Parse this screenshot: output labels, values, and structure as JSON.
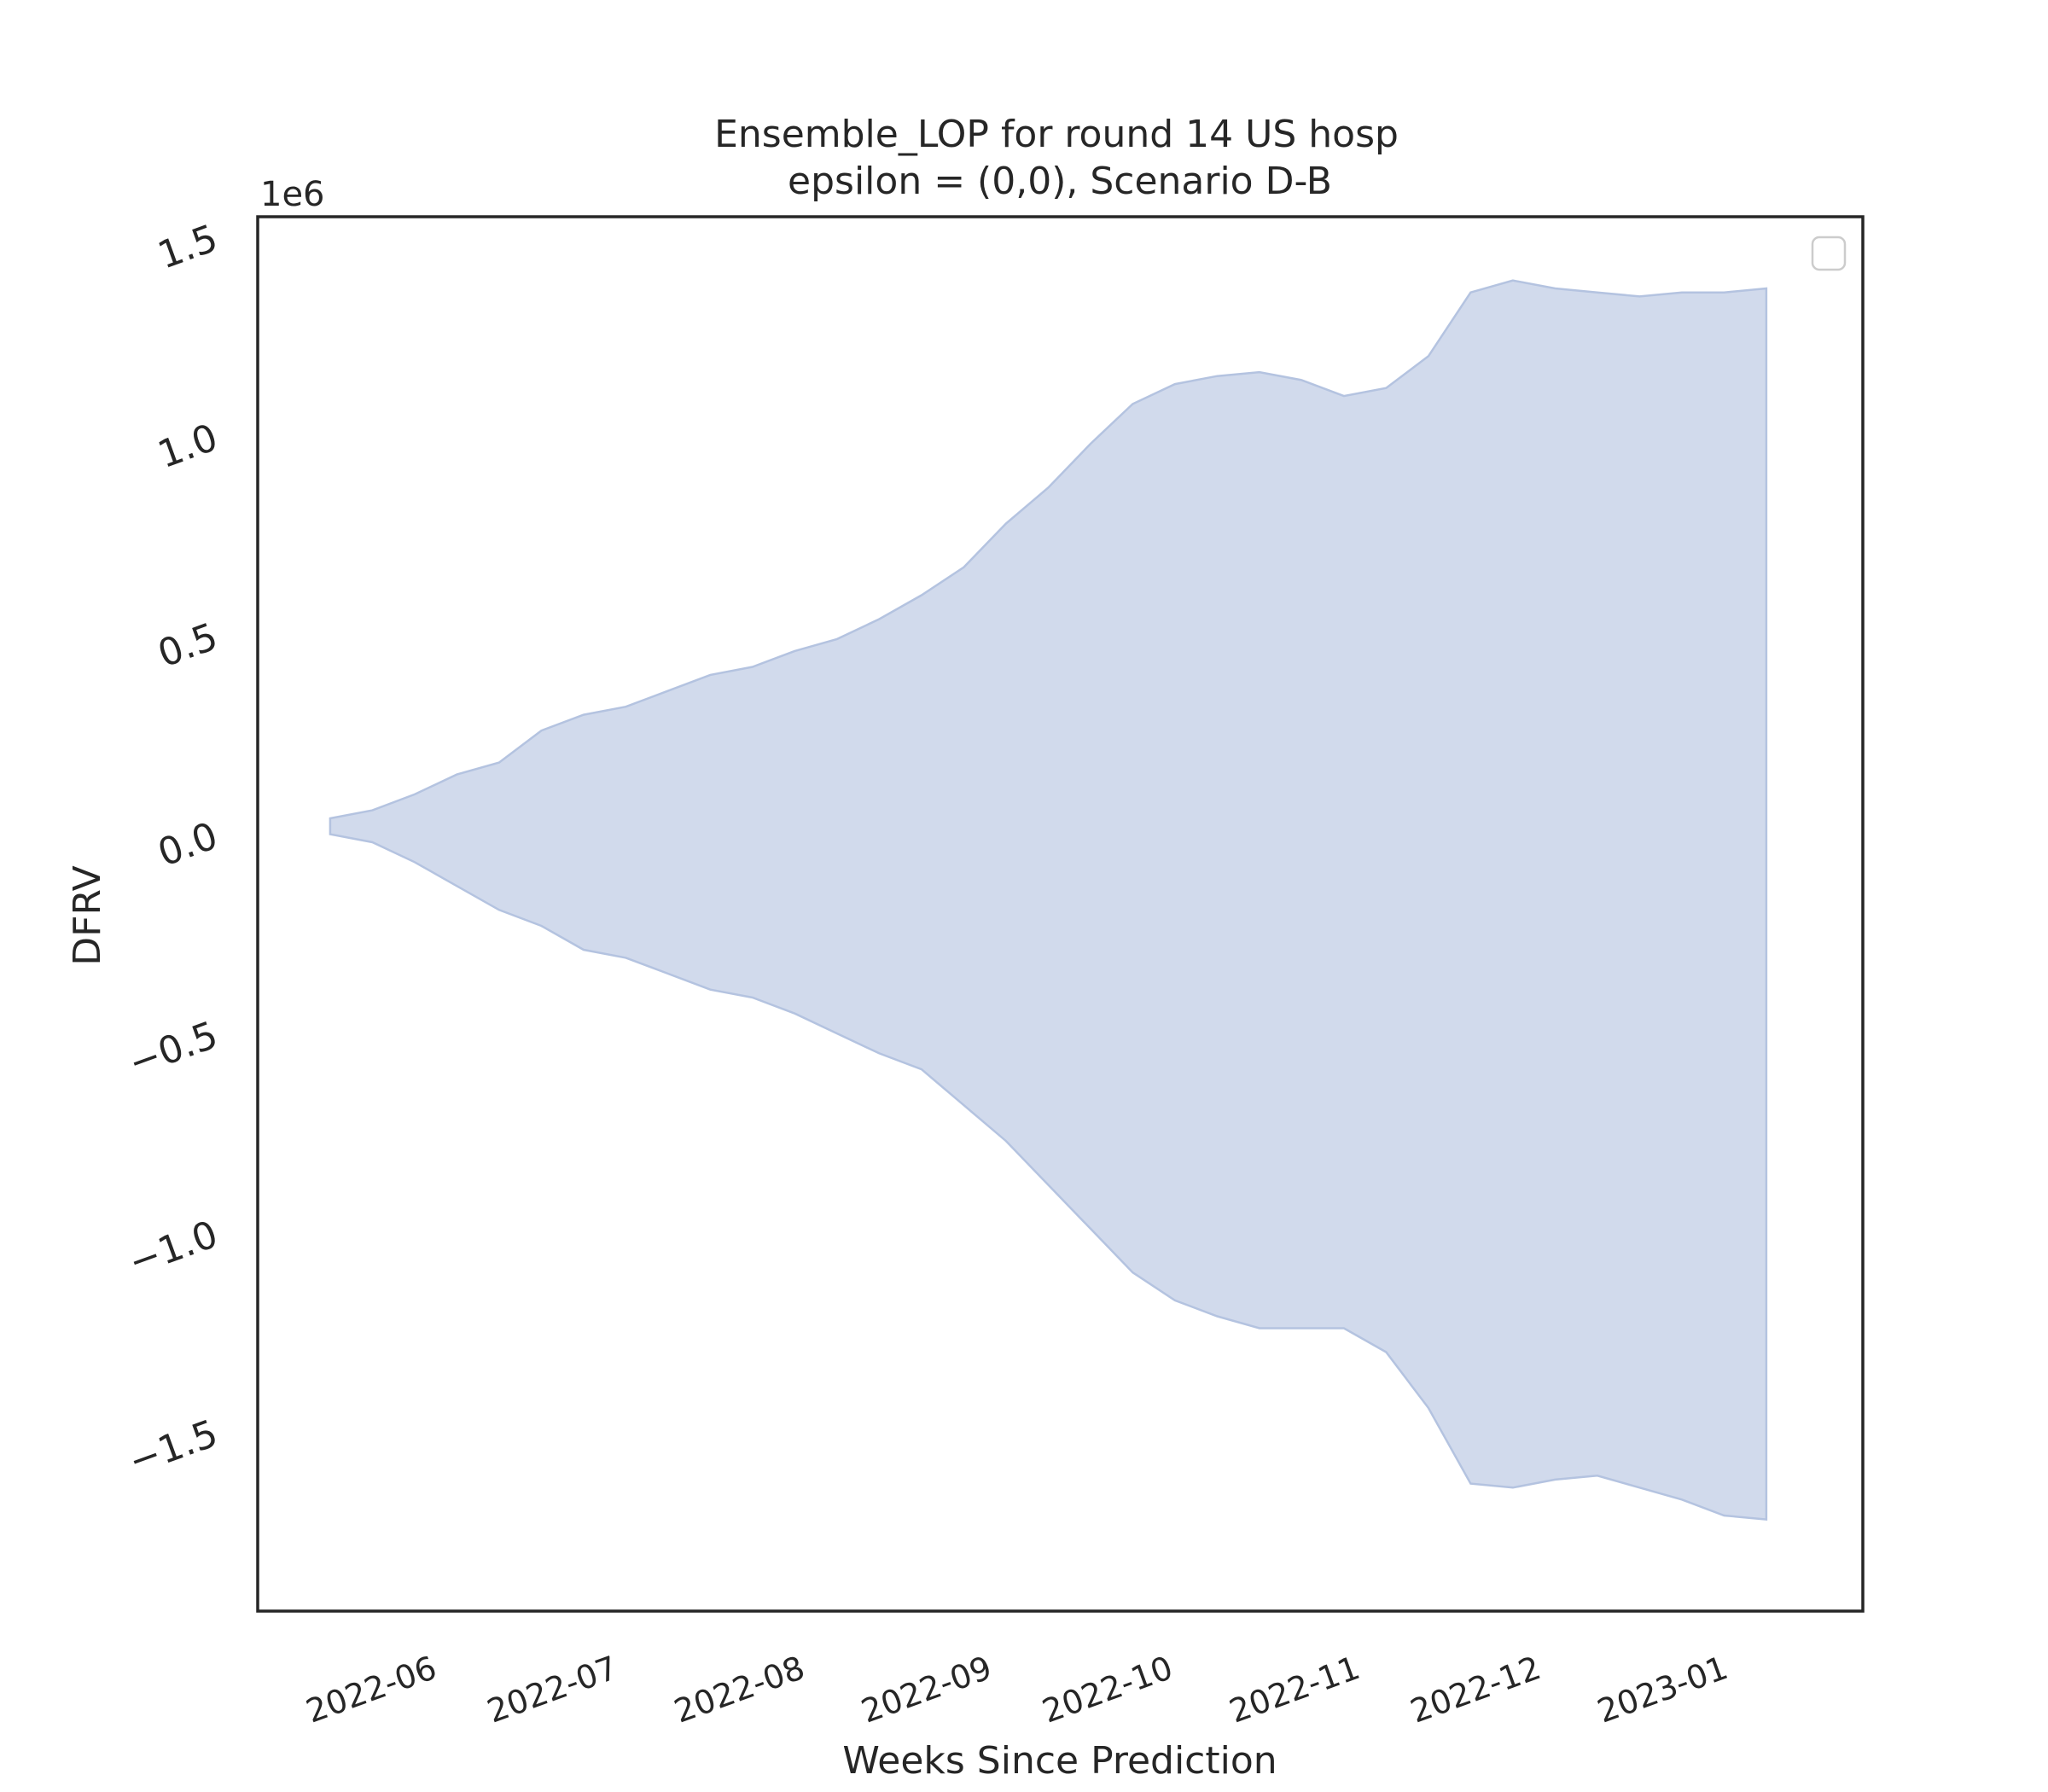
{
  "chart_data": {
    "type": "area",
    "title": "Ensemble_LOP for round 14 US hosp",
    "subtitle": "epsilon = (0,0), Scenario D-B",
    "xlabel": "Weeks Since Prediction",
    "ylabel": "DFRV",
    "y_multiplier_label": "1e6",
    "y_multiplier": 1000000,
    "ylim": [
      -1.95,
      1.55
    ],
    "xlim": [
      "2022-05-02",
      "2023-01-23"
    ],
    "x_ticks": [
      {
        "date": "2022-06-01",
        "label": "2022-06"
      },
      {
        "date": "2022-07-01",
        "label": "2022-07"
      },
      {
        "date": "2022-08-01",
        "label": "2022-08"
      },
      {
        "date": "2022-09-01",
        "label": "2022-09"
      },
      {
        "date": "2022-10-01",
        "label": "2022-10"
      },
      {
        "date": "2022-11-01",
        "label": "2022-11"
      },
      {
        "date": "2022-12-01",
        "label": "2022-12"
      },
      {
        "date": "2023-01-01",
        "label": "2023-01"
      }
    ],
    "y_ticks": [
      {
        "value": 1.5,
        "label": "1.5"
      },
      {
        "value": 1.0,
        "label": "1.0"
      },
      {
        "value": 0.5,
        "label": "0.5"
      },
      {
        "value": 0.0,
        "label": "0.0"
      },
      {
        "value": -0.5,
        "label": "−0.5"
      },
      {
        "value": -1.0,
        "label": "−1.0"
      },
      {
        "value": -1.5,
        "label": "−1.5"
      }
    ],
    "grid": false,
    "legend": {
      "placement": "top-right",
      "entries": []
    },
    "colors": {
      "fill": "#ccd6ea",
      "edge": "#b4c3e0",
      "axes": "#262626"
    },
    "series": [
      {
        "x": [
          "2022-05-14",
          "2022-05-21",
          "2022-05-28",
          "2022-06-04",
          "2022-06-11",
          "2022-06-18",
          "2022-06-25",
          "2022-07-02",
          "2022-07-09",
          "2022-07-16",
          "2022-07-23",
          "2022-07-30",
          "2022-08-06",
          "2022-08-13",
          "2022-08-20",
          "2022-08-27",
          "2022-09-03",
          "2022-09-10",
          "2022-09-17",
          "2022-09-24",
          "2022-10-01",
          "2022-10-08",
          "2022-10-15",
          "2022-10-22",
          "2022-10-29",
          "2022-11-05",
          "2022-11-12",
          "2022-11-19",
          "2022-11-26",
          "2022-12-03",
          "2022-12-10",
          "2022-12-17",
          "2022-12-24",
          "2022-12-31",
          "2023-01-07"
        ],
        "upper": [
          0.04,
          0.06,
          0.1,
          0.15,
          0.18,
          0.26,
          0.3,
          0.32,
          0.36,
          0.4,
          0.42,
          0.46,
          0.49,
          0.54,
          0.6,
          0.67,
          0.78,
          0.87,
          0.98,
          1.08,
          1.13,
          1.15,
          1.16,
          1.14,
          1.1,
          1.12,
          1.2,
          1.36,
          1.39,
          1.37,
          1.36,
          1.35,
          1.36,
          1.36,
          1.37
        ],
        "lower": [
          0.0,
          -0.02,
          -0.07,
          -0.13,
          -0.19,
          -0.23,
          -0.29,
          -0.31,
          -0.35,
          -0.39,
          -0.41,
          -0.45,
          -0.5,
          -0.55,
          -0.59,
          -0.68,
          -0.77,
          -0.88,
          -0.99,
          -1.1,
          -1.17,
          -1.21,
          -1.24,
          -1.24,
          -1.24,
          -1.3,
          -1.44,
          -1.63,
          -1.64,
          -1.62,
          -1.61,
          -1.64,
          -1.67,
          -1.71,
          -1.72
        ]
      }
    ]
  }
}
